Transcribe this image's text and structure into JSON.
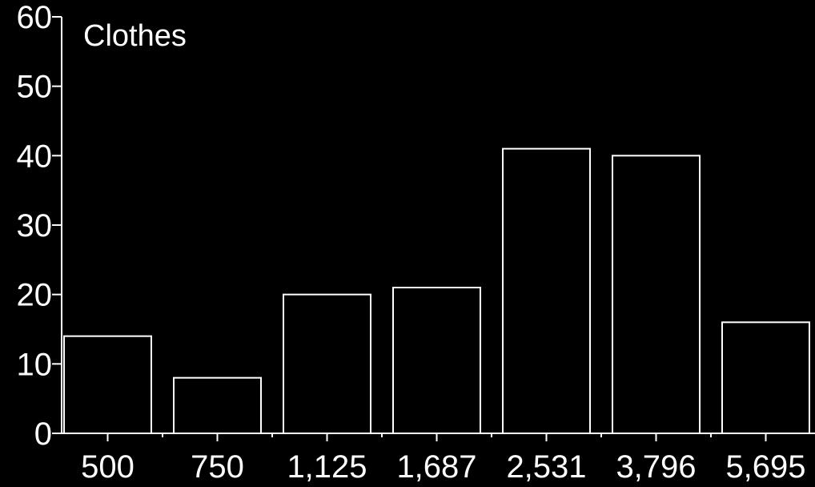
{
  "chart_data": {
    "type": "bar",
    "title": "Clothes",
    "categories": [
      "500",
      "750",
      "1,125",
      "1,687",
      "2,531",
      "3,796",
      "5,695"
    ],
    "values": [
      14,
      8,
      20,
      21,
      41,
      40,
      16
    ],
    "ylim": [
      0,
      60
    ],
    "yticks": [
      "0",
      "10",
      "20",
      "30",
      "40",
      "50",
      "60"
    ],
    "xlabel": "",
    "ylabel": "",
    "grid": false,
    "colors": {
      "background": "#000000",
      "stroke": "#ffffff"
    }
  }
}
